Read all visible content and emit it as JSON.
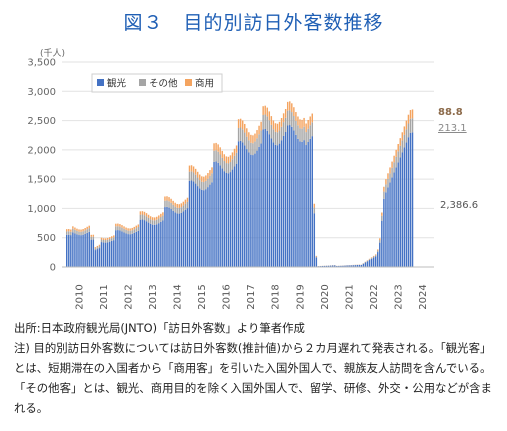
{
  "title": "図３　目的別訪日外客数推移",
  "chart_data": {
    "type": "bar",
    "stacked": true,
    "unit_label": "(千人)",
    "ylim": [
      0,
      3500
    ],
    "y_ticks": [
      "0",
      "500",
      "1,000",
      "1,500",
      "2,000",
      "2,500",
      "3,000",
      "3,500"
    ],
    "x_ticks": [
      "2010",
      "2011",
      "2012",
      "2013",
      "2014",
      "2015",
      "2016",
      "2017",
      "2018",
      "2019",
      "2020",
      "2021",
      "2022",
      "2023",
      "2024"
    ],
    "grid": true,
    "legend_position": "top-left",
    "series": [
      {
        "name": "観光",
        "color": "#4472c4"
      },
      {
        "name": "その他",
        "color": "#a5a5a5"
      },
      {
        "name": "商用",
        "color": "#f4a460"
      }
    ],
    "annual_totals": [
      680,
      520,
      700,
      900,
      1140,
      1640,
      2000,
      2390,
      2600,
      2670,
      330,
      20,
      320,
      2120,
      2700
    ],
    "data_labels": {
      "commercial": "88.8",
      "other": "213.1",
      "tourism": "2,386.6"
    }
  },
  "notes": {
    "source": "出所:日本政府観光局(JNTO)「訪日外客数」より筆者作成",
    "note1": "注) 目的別訪日外客数については訪日外客数(推計値)から２カ月遅れて発表される。「観光客」とは、短期滞在の入国者から「商用客」を引いた入国外国人で、親族友人訪問を含んでいる。「その他客」とは、観光、商用目的を除く入国外国人で、留学、研修、外交・公用などが含まれる。"
  }
}
